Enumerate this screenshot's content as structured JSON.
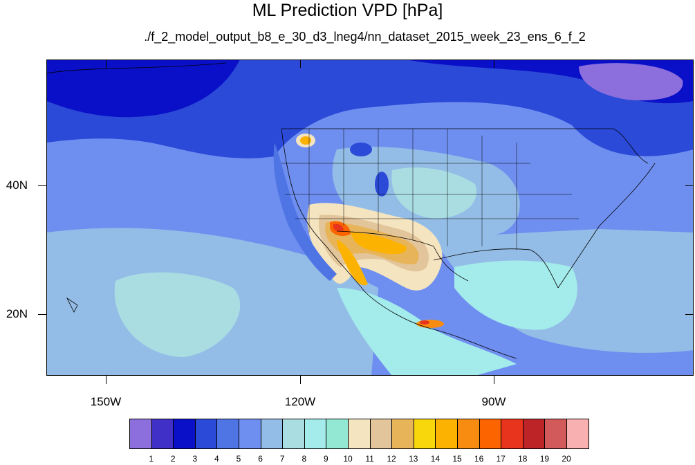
{
  "title": "ML Prediction VPD [hPa]",
  "subtitle": "./f_2_model_output_b8_e_30_d3_lneg4/nn_dataset_2015_week_23_ens_6_f_2",
  "map": {
    "projection": "cylindrical-equidistant",
    "lat_labels": [
      "40N",
      "20N"
    ],
    "lon_labels": [
      "150W",
      "120W",
      "90W"
    ]
  },
  "colorbar": {
    "labels": [
      "1",
      "2",
      "3",
      "4",
      "5",
      "6",
      "7",
      "8",
      "9",
      "10",
      "11",
      "12",
      "13",
      "14",
      "15",
      "16",
      "17",
      "18",
      "19",
      "20"
    ],
    "colors": [
      "#8c6fdc",
      "#4130c8",
      "#0a10c8",
      "#2b4ad8",
      "#4f74e4",
      "#6f8ff0",
      "#93bde6",
      "#aadde2",
      "#a4ebec",
      "#93e8d4",
      "#f4e4c0",
      "#e2c59a",
      "#e8b45a",
      "#f8d80c",
      "#fcb200",
      "#f88c10",
      "#fc6400",
      "#e8341c",
      "#bc2428",
      "#d25a5a",
      "#f8b0b0"
    ]
  }
}
